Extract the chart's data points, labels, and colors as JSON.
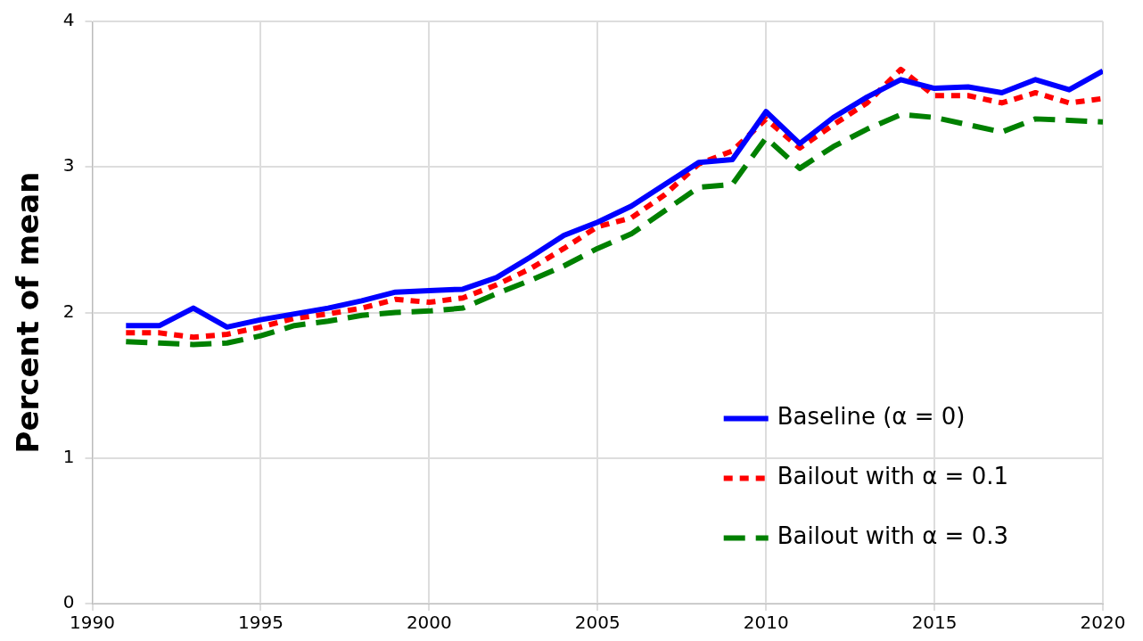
{
  "chart_data": {
    "type": "line",
    "ylabel": "Percent of mean",
    "x": [
      1991,
      1992,
      1993,
      1994,
      1995,
      1996,
      1997,
      1998,
      1999,
      2000,
      2001,
      2002,
      2003,
      2004,
      2005,
      2006,
      2007,
      2008,
      2009,
      2010,
      2011,
      2012,
      2013,
      2014,
      2015,
      2016,
      2017,
      2018,
      2019,
      2020
    ],
    "series": [
      {
        "name": "Baseline (α = 0)",
        "color": "#0000ff",
        "line_style": "solid",
        "values": [
          1.91,
          1.91,
          2.03,
          1.9,
          1.95,
          1.99,
          2.03,
          2.08,
          2.14,
          2.15,
          2.16,
          2.24,
          2.38,
          2.53,
          2.62,
          2.73,
          2.88,
          3.03,
          3.05,
          3.38,
          3.16,
          3.34,
          3.48,
          3.6,
          3.54,
          3.55,
          3.51,
          3.6,
          3.53,
          3.66
        ]
      },
      {
        "name": "Bailout with α = 0.1",
        "color": "#ff0000",
        "line_style": "dotted",
        "values": [
          1.86,
          1.86,
          1.83,
          1.85,
          1.9,
          1.96,
          1.99,
          2.03,
          2.09,
          2.07,
          2.1,
          2.19,
          2.3,
          2.44,
          2.59,
          2.65,
          2.81,
          3.02,
          3.11,
          3.33,
          3.13,
          3.29,
          3.44,
          3.67,
          3.49,
          3.49,
          3.44,
          3.51,
          3.44,
          3.47
        ]
      },
      {
        "name": "Bailout with α = 0.3",
        "color": "#008000",
        "line_style": "dashed",
        "values": [
          1.8,
          1.79,
          1.78,
          1.79,
          1.84,
          1.91,
          1.94,
          1.98,
          2.0,
          2.01,
          2.03,
          2.13,
          2.22,
          2.32,
          2.44,
          2.54,
          2.7,
          2.86,
          2.88,
          3.2,
          2.99,
          3.14,
          3.26,
          3.36,
          3.34,
          3.29,
          3.24,
          3.33,
          3.32,
          3.31
        ]
      }
    ],
    "xlim": [
      1990,
      2020
    ],
    "xticks": [
      1990,
      1995,
      2000,
      2005,
      2010,
      2015,
      2020
    ],
    "ylim": [
      0,
      4
    ],
    "yticks": [
      0,
      1,
      2,
      3,
      4
    ],
    "grid": true,
    "legend": "bottom right",
    "marker": "none"
  }
}
